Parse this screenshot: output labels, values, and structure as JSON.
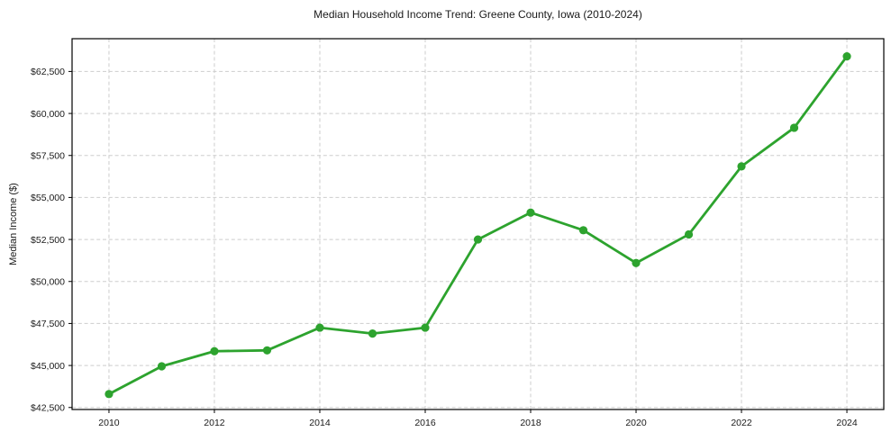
{
  "figure": {
    "title": "Median Household Income Trend: Greene County, Iowa (2010-2024)",
    "y_axis_label": "Median Income ($)"
  },
  "chart_data": {
    "type": "line",
    "title": "Median Household Income Trend: Greene County, Iowa (2010-2024)",
    "xlabel": "",
    "ylabel": "Median Income ($)",
    "x": [
      2010,
      2011,
      2012,
      2013,
      2014,
      2015,
      2016,
      2017,
      2018,
      2019,
      2020,
      2021,
      2022,
      2023,
      2024
    ],
    "values": [
      43300,
      44950,
      45850,
      45900,
      47250,
      46900,
      47250,
      52500,
      54100,
      53050,
      51100,
      52800,
      56850,
      59150,
      63400
    ],
    "x_ticks": [
      2010,
      2012,
      2014,
      2016,
      2018,
      2020,
      2022,
      2024
    ],
    "x_tick_labels": [
      "2010",
      "2012",
      "2014",
      "2016",
      "2018",
      "2020",
      "2022",
      "2024"
    ],
    "y_ticks": [
      42500,
      45000,
      47500,
      50000,
      52500,
      55000,
      57500,
      60000,
      62500
    ],
    "y_tick_labels": [
      "$42,500",
      "$45,000",
      "$47,500",
      "$50,000",
      "$52,500",
      "$55,000",
      "$57,500",
      "$60,000",
      "$62,500"
    ],
    "xlim": [
      2009.3,
      2024.7
    ],
    "ylim": [
      42380,
      64450
    ],
    "grid": true,
    "legend": "none",
    "line_color": "#2da32e",
    "marker": "circle",
    "grid_color": "#cdcdcd",
    "spine_color": "#000000",
    "background_color": "#ffffff"
  }
}
